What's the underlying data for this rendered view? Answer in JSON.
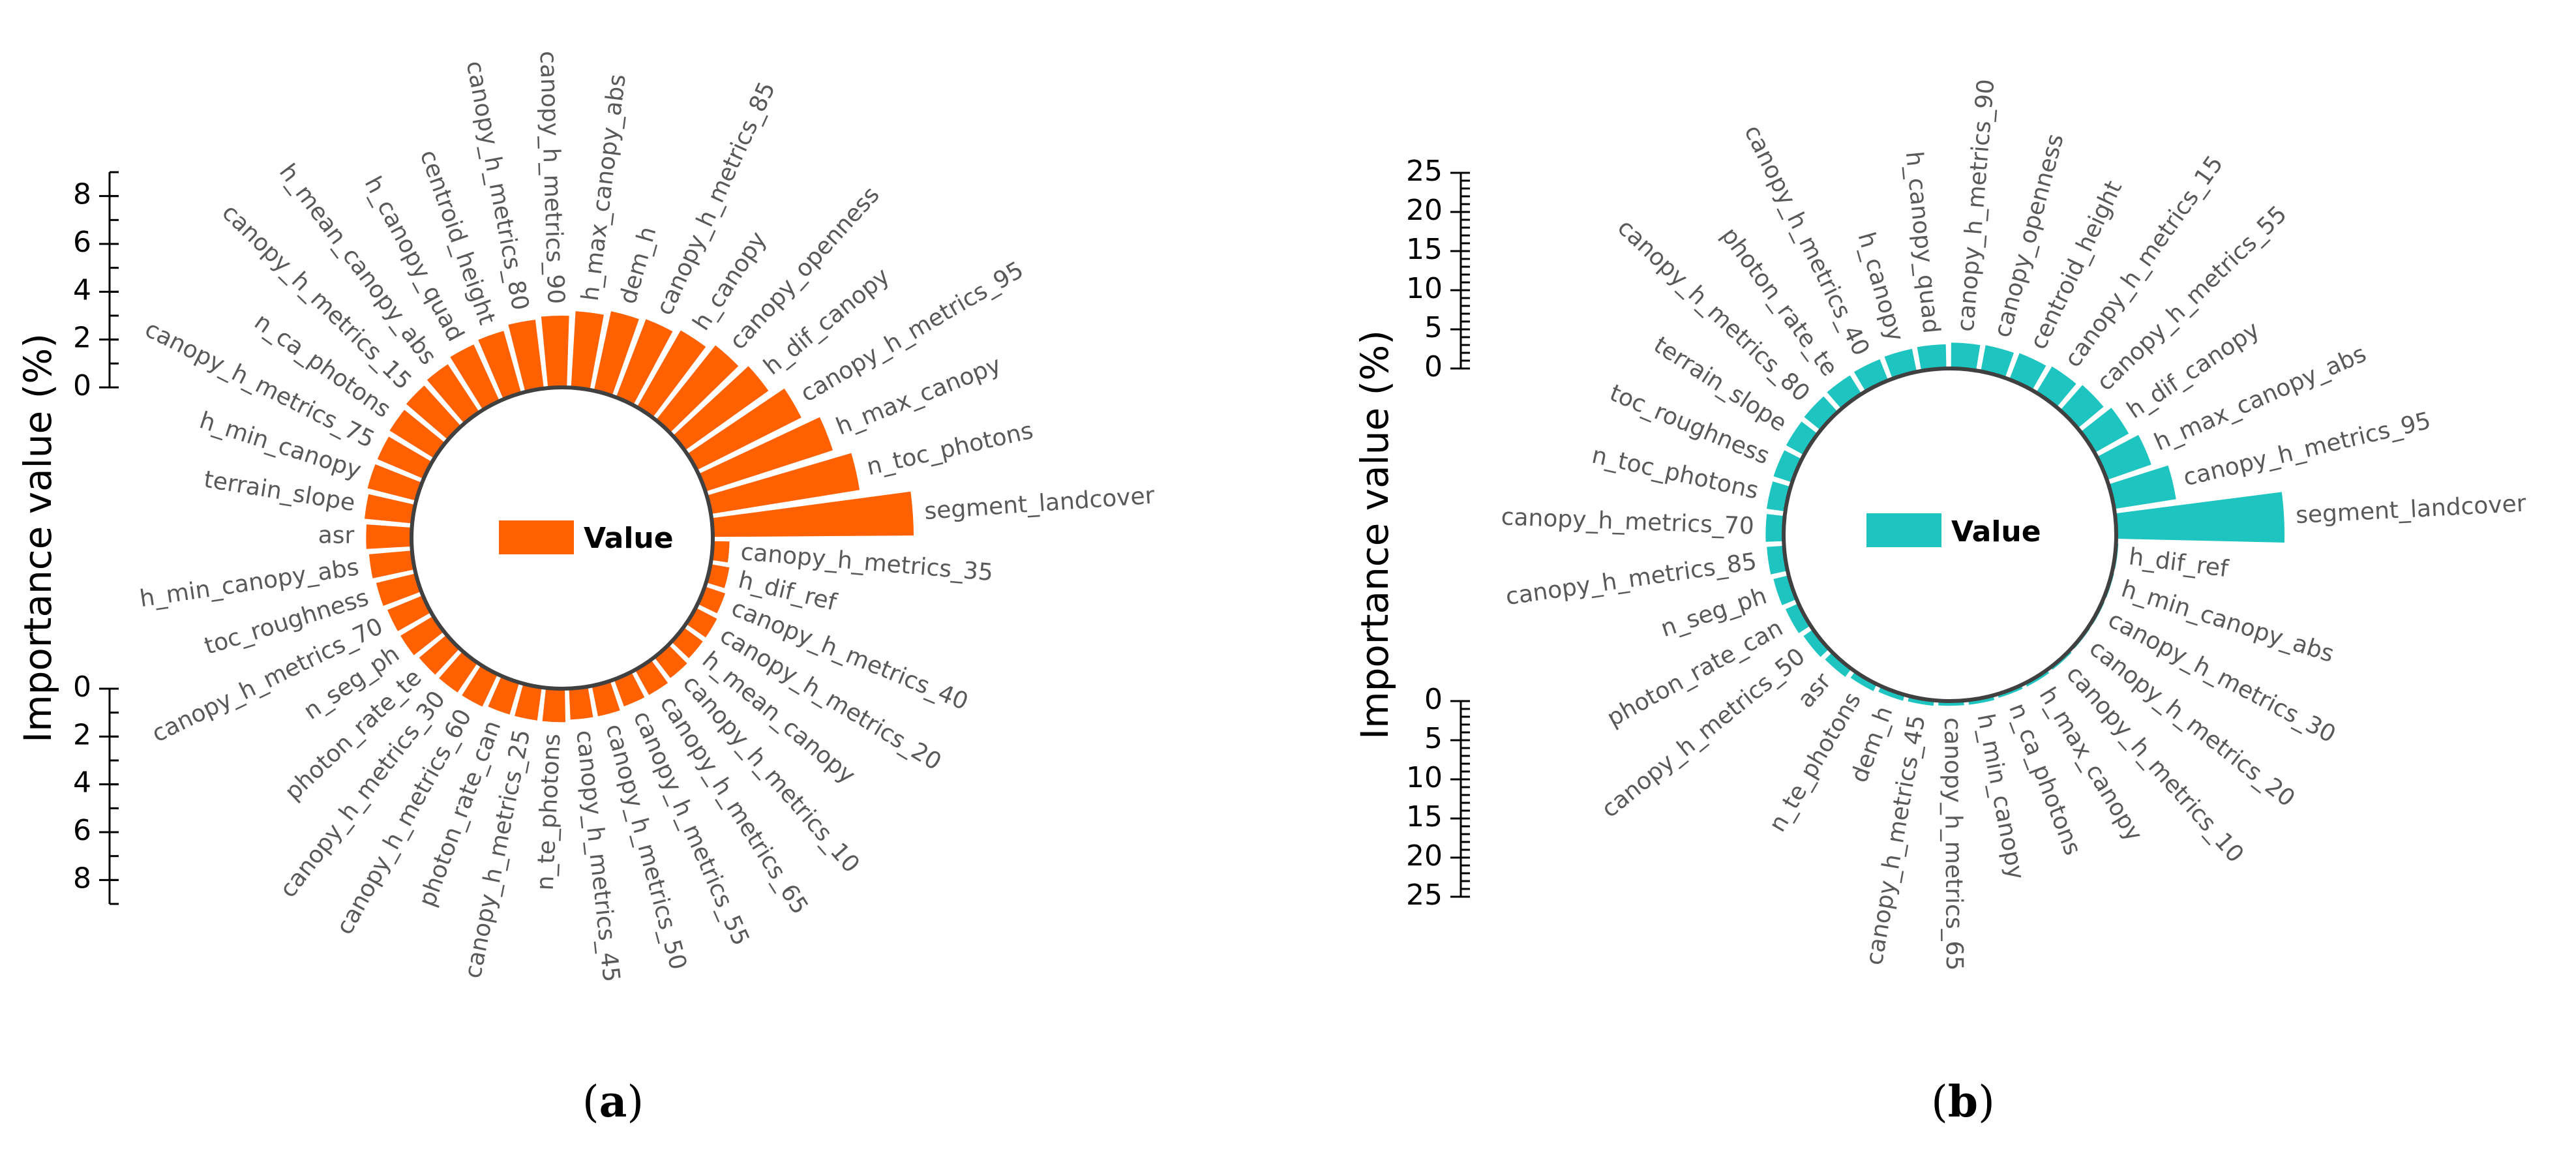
{
  "chart_data": [
    {
      "type": "circular-bar",
      "panel_label": "a",
      "ylabel": "Importance value (%)",
      "legend": "Value",
      "color": "#FF6000",
      "axis_top": {
        "ticks": [
          "0",
          "2",
          "4",
          "6",
          "8"
        ],
        "range": [
          0,
          9
        ]
      },
      "axis_bottom": {
        "ticks": [
          "0",
          "2",
          "4",
          "6",
          "8"
        ],
        "range": [
          0,
          9
        ]
      },
      "categories": [
        "segment_landcover",
        "canopy_h_metrics_35",
        "h_dif_ref",
        "canopy_h_metrics_40",
        "canopy_h_metrics_20",
        "h_mean_canopy",
        "canopy_h_metrics_10",
        "canopy_h_metrics_65",
        "canopy_h_metrics_55",
        "canopy_h_metrics_50",
        "canopy_h_metrics_45",
        "n_te_photons",
        "canopy_h_metrics_25",
        "photon_rate_can",
        "canopy_h_metrics_60",
        "canopy_h_metrics_30",
        "photon_rate_te",
        "n_seg_ph",
        "canopy_h_metrics_70",
        "toc_roughness",
        "h_min_canopy_abs",
        "asr",
        "terrain_slope",
        "h_min_canopy",
        "canopy_h_metrics_75",
        "n_ca_photons",
        "canopy_h_metrics_15",
        "h_mean_canopy_abs",
        "h_canopy_quad",
        "centroid_height",
        "canopy_h_metrics_80",
        "canopy_h_metrics_90",
        "h_max_canopy_abs",
        "dem_h",
        "canopy_h_metrics_85",
        "h_canopy",
        "canopy_openness",
        "h_dif_canopy",
        "canopy_h_metrics_95",
        "h_max_canopy",
        "n_toc_photons"
      ],
      "values": [
        8.4,
        0.7,
        0.8,
        0.9,
        1.0,
        1.0,
        1.1,
        1.2,
        1.2,
        1.3,
        1.3,
        1.4,
        1.4,
        1.4,
        1.5,
        1.5,
        1.5,
        1.6,
        1.6,
        1.7,
        1.8,
        1.9,
        2.0,
        2.1,
        2.1,
        2.2,
        2.3,
        2.4,
        2.6,
        2.7,
        2.9,
        3.0,
        3.2,
        3.4,
        3.5,
        3.7,
        4.0,
        4.3,
        4.9,
        5.6,
        6.3
      ]
    },
    {
      "type": "circular-bar",
      "panel_label": "b",
      "ylabel": "Importance value (%)",
      "legend": "Value",
      "color": "#1EC5C0",
      "axis_top": {
        "ticks": [
          "25",
          "20",
          "15",
          "10",
          "5",
          "0"
        ],
        "range": [
          0,
          25
        ]
      },
      "axis_bottom": {
        "ticks": [
          "0",
          "5",
          "10",
          "15",
          "20",
          "25"
        ],
        "range": [
          0,
          25
        ]
      },
      "categories": [
        "segment_landcover",
        "h_dif_ref",
        "h_min_canopy_abs",
        "canopy_h_metrics_30",
        "canopy_h_metrics_20",
        "canopy_h_metrics_10",
        "h_max_canopy",
        "n_ca_photons",
        "h_min_canopy",
        "canopy_h_metrics_65",
        "canopy_h_metrics_45",
        "dem_h",
        "n_te_photons",
        "asr",
        "canopy_h_metrics_50",
        "photon_rate_can",
        "n_seg_ph",
        "canopy_h_metrics_85",
        "canopy_h_metrics_70",
        "n_toc_photons",
        "toc_roughness",
        "terrain_slope",
        "canopy_h_metrics_80",
        "photon_rate_te",
        "canopy_h_metrics_40",
        "h_canopy",
        "h_canopy_quad",
        "canopy_h_metrics_90",
        "canopy_openness",
        "centroid_height",
        "canopy_h_metrics_15",
        "canopy_h_metrics_55",
        "h_dif_canopy",
        "h_max_canopy_abs",
        "canopy_h_metrics_95"
      ],
      "values": [
        21.5,
        0.3,
        0.3,
        0.3,
        0.3,
        0.4,
        0.5,
        0.5,
        0.6,
        0.6,
        0.7,
        0.8,
        1.0,
        1.3,
        1.5,
        1.8,
        2.0,
        2.2,
        2.3,
        2.4,
        2.5,
        2.6,
        2.7,
        2.8,
        2.9,
        3.0,
        3.1,
        3.3,
        3.4,
        3.6,
        3.9,
        4.3,
        5.0,
        6.0,
        8.0
      ]
    }
  ]
}
